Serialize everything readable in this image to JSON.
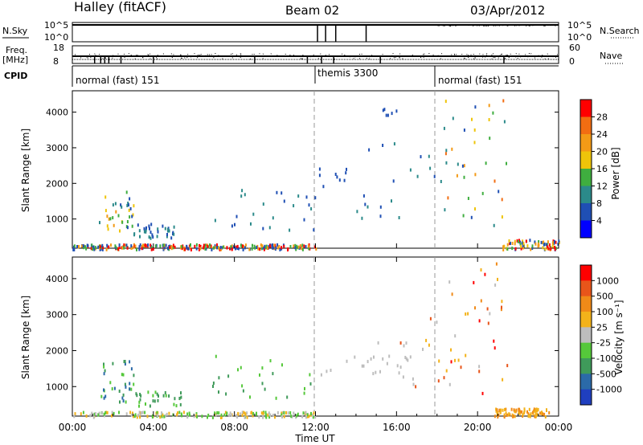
{
  "header": {
    "station": "Halley (fitACF)",
    "beam": "Beam 02",
    "date": "03/Apr/2012"
  },
  "top_panels": {
    "nsky_label": "N.Sky",
    "nsky_ticks": [
      "10^5",
      "10^0"
    ],
    "nsearch_label": "N.Search",
    "nsearch_ticks": [
      "10^5",
      "10^0"
    ],
    "freq_label": "Freq.",
    "freq_unit": "[MHz]",
    "freq_ticks": [
      "18",
      "8"
    ],
    "nave_label": "Nave",
    "nave_ticks": [
      "60",
      "0"
    ],
    "cpid_label": "CPID",
    "cpid_segments": [
      {
        "label": "normal (fast) 151",
        "start_h": 0,
        "end_h": 12
      },
      {
        "label": "themis 3300",
        "start_h": 12,
        "end_h": 18
      },
      {
        "label": "normal (fast) 151",
        "start_h": 18,
        "end_h": 24
      }
    ]
  },
  "x_axis": {
    "label": "Time UT",
    "ticks": [
      "00:00",
      "04:00",
      "08:00",
      "12:00",
      "16:00",
      "20:00",
      "00:00"
    ]
  },
  "chart_data": [
    {
      "type": "heatmap",
      "panel": "power",
      "ylabel": "Slant Range [km]",
      "y_ticks": [
        1000,
        2000,
        3000,
        4000
      ],
      "ylim": [
        180,
        4600
      ],
      "xlim_hours": [
        0,
        24
      ],
      "colorbar_label": "Power [dB]",
      "colorbar_ticks": [
        "4",
        "8",
        "12",
        "16",
        "20",
        "24",
        "28"
      ],
      "colorbar_colors": [
        "#0000ff",
        "#1f4fb4",
        "#2b8a8a",
        "#3fae3f",
        "#eec40a",
        "#f39a16",
        "#f26d12",
        "#ff0000"
      ],
      "scatter_regions": [
        {
          "t": [
            1.3,
            3.0
          ],
          "r": [
            600,
            1800
          ],
          "colors": [
            "#1f4fb4",
            "#2b8a8a",
            "#3fae3f",
            "#eec40a",
            "#f39a16"
          ],
          "density": 0.5
        },
        {
          "t": [
            3.0,
            5.4
          ],
          "r": [
            500,
            900
          ],
          "colors": [
            "#1f4fb4",
            "#2b8a8a"
          ],
          "density": 0.35
        },
        {
          "t": [
            6.8,
            12.0
          ],
          "r": [
            700,
            1900
          ],
          "colors": [
            "#1f4fb4",
            "#2b8a8a"
          ],
          "density": 0.12
        },
        {
          "t": [
            12.0,
            13.5
          ],
          "r": [
            1800,
            2600
          ],
          "colors": [
            "#1f4fb4"
          ],
          "density": 0.15
        },
        {
          "t": [
            14.0,
            18.5
          ],
          "r": [
            1000,
            3500
          ],
          "colors": [
            "#1f4fb4",
            "#2b8a8a"
          ],
          "density": 0.12
        },
        {
          "t": [
            18.3,
            21.5
          ],
          "r": [
            800,
            4500
          ],
          "colors": [
            "#1f4fb4",
            "#2b8a8a",
            "#3fae3f",
            "#eec40a",
            "#f39a16",
            "#f26d12"
          ],
          "density": 0.28
        },
        {
          "t": [
            21.2,
            24.0
          ],
          "r": [
            180,
            450
          ],
          "colors": [
            "#3fae3f",
            "#eec40a",
            "#f39a16",
            "#ff0000",
            "#1f4fb4"
          ],
          "density": 0.7
        },
        {
          "t": [
            0.0,
            12.0
          ],
          "r": [
            180,
            320
          ],
          "colors": [
            "#1f4fb4",
            "#3fae3f",
            "#ff0000",
            "#f39a16"
          ],
          "density": 0.55
        },
        {
          "t": [
            15.2,
            16.0
          ],
          "r": [
            3900,
            4400
          ],
          "colors": [
            "#1f4fb4"
          ],
          "density": 0.2
        }
      ]
    },
    {
      "type": "heatmap",
      "panel": "velocity",
      "ylabel": "Slant Range [km]",
      "y_ticks": [
        1000,
        2000,
        3000,
        4000
      ],
      "ylim": [
        180,
        4600
      ],
      "xlim_hours": [
        0,
        24
      ],
      "colorbar_label": "Velocity [m s⁻¹]",
      "colorbar_ticks": [
        "1000",
        "500",
        "100",
        "25",
        "-25",
        "-100",
        "-500",
        "-1000"
      ],
      "colorbar_colors": [
        "#1f3fbf",
        "#2b6aa8",
        "#3f9a5a",
        "#55c83a",
        "#bdbdbd",
        "#f3b21a",
        "#f08a18",
        "#e8551a",
        "#ff0000"
      ],
      "scatter_regions": [
        {
          "t": [
            1.3,
            3.0
          ],
          "r": [
            600,
            1800
          ],
          "colors": [
            "#2b6aa8",
            "#3f9a5a",
            "#55c83a"
          ],
          "density": 0.5
        },
        {
          "t": [
            3.0,
            5.4
          ],
          "r": [
            500,
            900
          ],
          "colors": [
            "#3f9a5a",
            "#55c83a"
          ],
          "density": 0.3
        },
        {
          "t": [
            6.8,
            12.0
          ],
          "r": [
            700,
            1900
          ],
          "colors": [
            "#3f9a5a",
            "#55c83a"
          ],
          "density": 0.12
        },
        {
          "t": [
            12.0,
            17.0
          ],
          "r": [
            1300,
            1900
          ],
          "colors": [
            "#bdbdbd"
          ],
          "density": 0.12
        },
        {
          "t": [
            15.0,
            18.5
          ],
          "r": [
            1000,
            3500
          ],
          "colors": [
            "#bdbdbd",
            "#f3b21a",
            "#e8551a"
          ],
          "density": 0.1
        },
        {
          "t": [
            18.3,
            21.5
          ],
          "r": [
            800,
            4500
          ],
          "colors": [
            "#f3b21a",
            "#f08a18",
            "#e8551a",
            "#ff0000",
            "#bdbdbd"
          ],
          "density": 0.28
        },
        {
          "t": [
            20.8,
            23.5
          ],
          "r": [
            200,
            420
          ],
          "colors": [
            "#f08a18",
            "#f3b21a"
          ],
          "density": 0.75
        },
        {
          "t": [
            0.0,
            12.0
          ],
          "r": [
            180,
            330
          ],
          "colors": [
            "#55c83a",
            "#bdbdbd",
            "#f3b21a"
          ],
          "density": 0.35
        }
      ]
    }
  ]
}
